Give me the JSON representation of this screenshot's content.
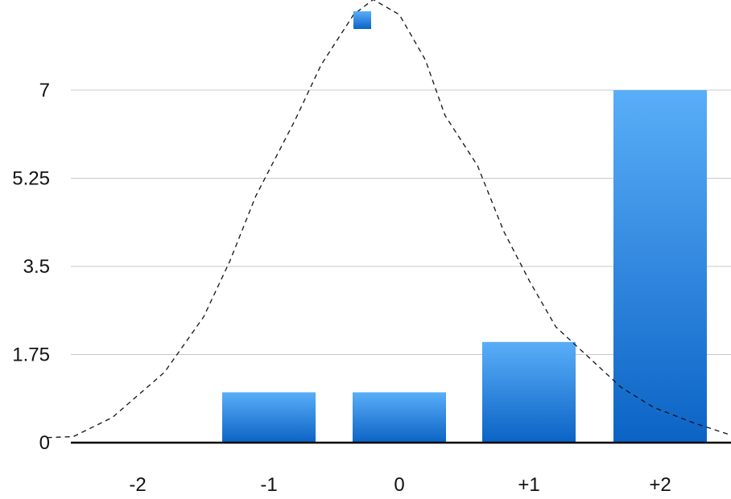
{
  "chart_data": {
    "type": "bar",
    "categories": [
      "-2",
      "-1",
      "0",
      "+1",
      "+2"
    ],
    "values": [
      0,
      1,
      1,
      2,
      7
    ],
    "series": [
      {
        "values": [
          0,
          1,
          1,
          2,
          7
        ],
        "legend_marker": true
      }
    ],
    "overlay_curve": {
      "type": "line",
      "style": "dashed",
      "x": [
        -2.7,
        -2.5,
        -2.2,
        -1.8,
        -1.5,
        -1.3,
        -1.1,
        -0.8,
        -0.6,
        -0.35,
        -0.2,
        0.0,
        0.2,
        0.35,
        0.6,
        0.8,
        1.0,
        1.2,
        1.45,
        1.7,
        1.95,
        2.25,
        2.6
      ],
      "y": [
        0.1,
        0.12,
        0.5,
        1.4,
        2.5,
        3.6,
        4.9,
        6.4,
        7.5,
        8.5,
        8.8,
        8.5,
        7.6,
        6.5,
        5.5,
        4.2,
        3.2,
        2.3,
        1.7,
        1.1,
        0.7,
        0.4,
        0.1
      ]
    },
    "yticks": [
      "0",
      "1.75",
      "3.5",
      "5.25",
      "7"
    ],
    "ytick_values": [
      0,
      1.75,
      3.5,
      5.25,
      7
    ],
    "ylim": [
      0,
      8.9
    ],
    "grid": true,
    "legend_placement": "top-center",
    "colors": {
      "bar_top": "#5aaef8",
      "bar_bottom": "#0b63c5",
      "grid": "#c8c8c8",
      "axis": "#000000",
      "curve": "#111111"
    }
  }
}
